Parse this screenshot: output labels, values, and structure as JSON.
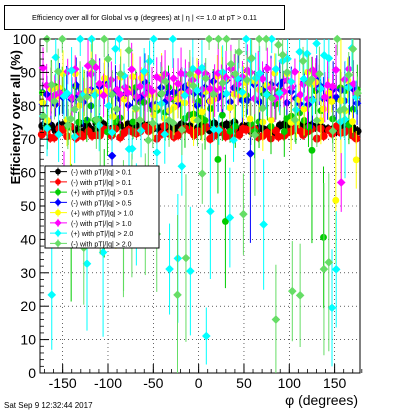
{
  "chart_data": {
    "type": "scatter",
    "title": "Efficiency over all for Global vs φ (degrees) at | η | <= 1.0 at pT > 0.11",
    "xlabel": "φ (degrees)",
    "ylabel": "Efficiency over all (%)",
    "xlim": [
      -175,
      178
    ],
    "ylim": [
      0,
      100
    ],
    "xticks": [
      -150,
      -100,
      -50,
      0,
      50,
      100,
      150
    ],
    "yticks": [
      0,
      10,
      20,
      30,
      40,
      50,
      60,
      70,
      80,
      90,
      100
    ],
    "grid": true,
    "legend_position": "middle-left",
    "series": [
      {
        "name": "(-) with pT|/|q| > 0.1",
        "color": "#000000",
        "marker": "circle",
        "level": 73.5,
        "scatter": 1.5
      },
      {
        "name": "(-) with pT|/|q| > 0.1",
        "color": "#ff0000",
        "marker": "circle",
        "level": 72.0,
        "scatter": 2.0
      },
      {
        "name": "(+) with pT|/|q| > 0.5",
        "color": "#00cc00",
        "marker": "circle",
        "level": 79.0,
        "scatter": 7.0
      },
      {
        "name": "(-) with pT|/|q| > 0.5",
        "color": "#0000ff",
        "marker": "diamond",
        "level": 84.0,
        "scatter": 4.0
      },
      {
        "name": "(+) with pT|/|q| > 1.0",
        "color": "#ffff00",
        "marker": "circle",
        "level": 83.0,
        "scatter": 8.0
      },
      {
        "name": "(-) with pT|/|q| > 1.0",
        "color": "#ff00ff",
        "marker": "diamond",
        "level": 87.0,
        "scatter": 5.0
      },
      {
        "name": "(+) with pT|/|q| > 2.0",
        "color": "#00ffff",
        "marker": "diamond",
        "level": 85.0,
        "scatter": 18.0
      },
      {
        "name": "(-) with pT|/|q| > 2.0",
        "color": "#66dd66",
        "marker": "diamond",
        "level": 88.0,
        "scatter": 16.0
      }
    ]
  },
  "footer": {
    "timestamp": "Sat Sep  9 12:32:44 2017"
  }
}
